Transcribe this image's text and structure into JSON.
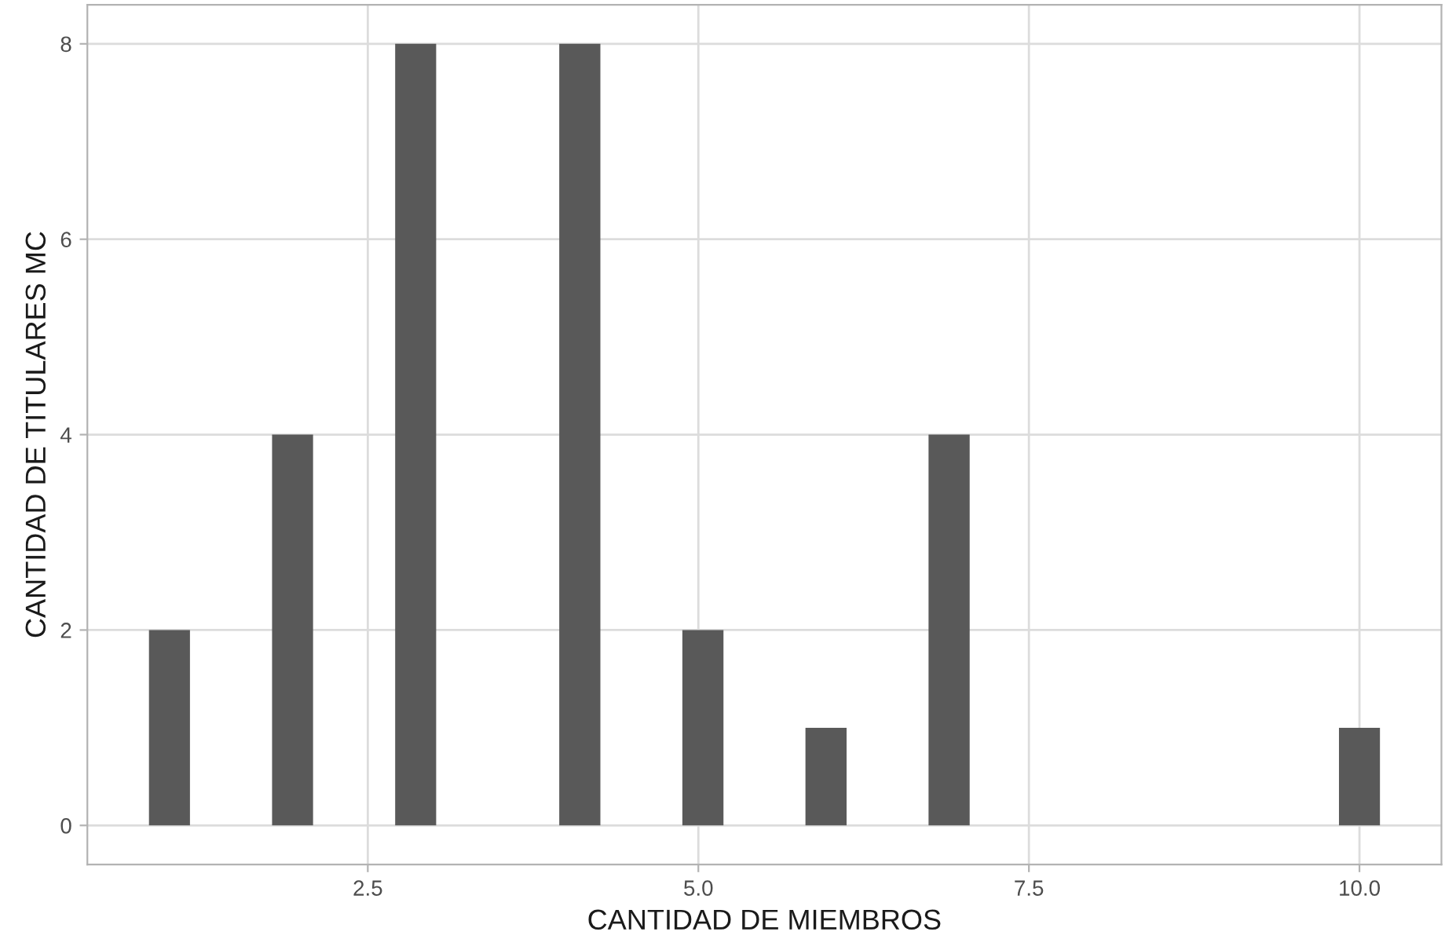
{
  "chart_data": {
    "type": "histogram",
    "xlabel": "CANTIDAD DE MIEMBROS",
    "ylabel": "CANTIDAD DE TITULARES MC",
    "bins": [
      0.845,
      1.155,
      1.466,
      1.776,
      2.086,
      2.397,
      2.707,
      3.017,
      3.328,
      3.638,
      3.948,
      4.259,
      4.569,
      4.879,
      5.19,
      5.5,
      5.81,
      6.121,
      6.431,
      6.741,
      7.052,
      7.362,
      7.672,
      7.983,
      8.293,
      8.603,
      8.914,
      9.224,
      9.534,
      9.845,
      10.155
    ],
    "values": [
      2,
      0,
      0,
      4,
      0,
      0,
      8,
      0,
      0,
      0,
      8,
      0,
      0,
      2,
      0,
      0,
      1,
      0,
      0,
      4,
      0,
      0,
      0,
      0,
      0,
      0,
      0,
      0,
      0,
      1
    ],
    "color": "#595959",
    "xlim": [
      0.379,
      10.62
    ],
    "ylim": [
      -0.4,
      8.4
    ],
    "xticks": [
      {
        "value": 2.5,
        "label": "2.5"
      },
      {
        "value": 5,
        "label": "5.0"
      },
      {
        "value": 7.5,
        "label": "7.5"
      },
      {
        "value": 10,
        "label": "10.0"
      }
    ],
    "yticks": [
      0,
      2,
      4,
      6,
      8
    ],
    "grid": true
  }
}
